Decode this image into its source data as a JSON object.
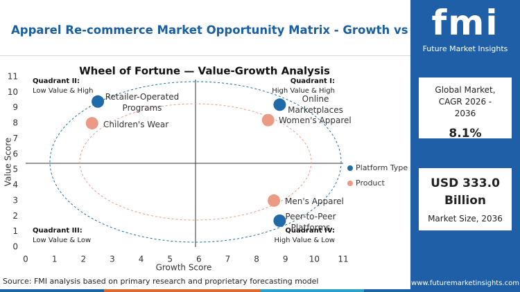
{
  "header": {
    "title": "Apparel Re-commerce Market Opportunity Matrix - Growth vs Value"
  },
  "chart_data": {
    "type": "scatter",
    "title": "Wheel of Fortune — Value-Growth Analysis",
    "x_label": "Growth Score",
    "y_label": "Value Score",
    "xlim": [
      0,
      11
    ],
    "ylim": [
      0,
      11
    ],
    "xticks": [
      0,
      1,
      2,
      3,
      4,
      5,
      6,
      7,
      8,
      9,
      10,
      11
    ],
    "yticks": [
      0,
      1,
      2,
      3,
      4,
      5,
      6,
      7,
      8,
      9,
      10,
      11
    ],
    "legend": "right",
    "series": [
      {
        "name": "Platform Type",
        "color": "#1f6aa8",
        "labels": [
          "Retailer-Operated Programs",
          "Online Marketplaces",
          "Peer-to-Peer Platforms"
        ],
        "x": [
          2.5,
          8.8,
          8.8
        ],
        "values": [
          9.4,
          9.2,
          1.7
        ]
      },
      {
        "name": "Product",
        "color": "#eb9a84",
        "labels": [
          "Children's Wear",
          "Women's Apparel",
          "Men's Apparel"
        ],
        "x": [
          2.3,
          8.4,
          8.6
        ],
        "values": [
          8.0,
          8.2,
          3.0
        ]
      }
    ],
    "quadrants": [
      {
        "title": "Quadrant II:",
        "text": "Low Value & High"
      },
      {
        "title": "Quadrant I:",
        "text": "High Value & High"
      },
      {
        "title": "Quadrant III:",
        "text": "Low Value & Low"
      },
      {
        "title": "Quadrant IV:",
        "text": "High Value & Low"
      }
    ]
  },
  "sidebar": {
    "logo": "fmi",
    "brand": "Future Market Insights",
    "cards": [
      {
        "label": "Global Market, CAGR 2026 - 2036",
        "value": "8.1%"
      },
      {
        "value": "USD 333.0 Billion",
        "label": "Market Size, 2036"
      }
    ],
    "website": "www.futuremarketinsights.com"
  },
  "source": "Source: FMI analysis based on primary research and proprietary forecasting model"
}
